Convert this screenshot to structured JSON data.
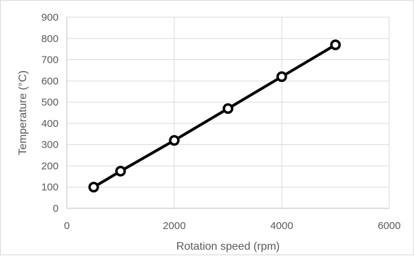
{
  "chart_data": {
    "type": "scatter",
    "title": "",
    "xlabel": "Rotation speed (rpm)",
    "ylabel": "Temperature (°C)",
    "xlim": [
      0,
      6000
    ],
    "ylim": [
      0,
      900
    ],
    "x_ticks": [
      "0",
      "2000",
      "4000",
      "6000"
    ],
    "y_ticks": [
      "0",
      "100",
      "200",
      "300",
      "400",
      "500",
      "600",
      "700",
      "800",
      "900"
    ],
    "grid": "vertical and horizontal major gridlines",
    "legend": "none",
    "series": [
      {
        "x": [
          500,
          1000,
          2000,
          3000,
          4000,
          5000
        ],
        "y": [
          100,
          175,
          320,
          470,
          620,
          770
        ],
        "marker": "open circle",
        "line": "solid",
        "color": "#000000"
      }
    ]
  }
}
